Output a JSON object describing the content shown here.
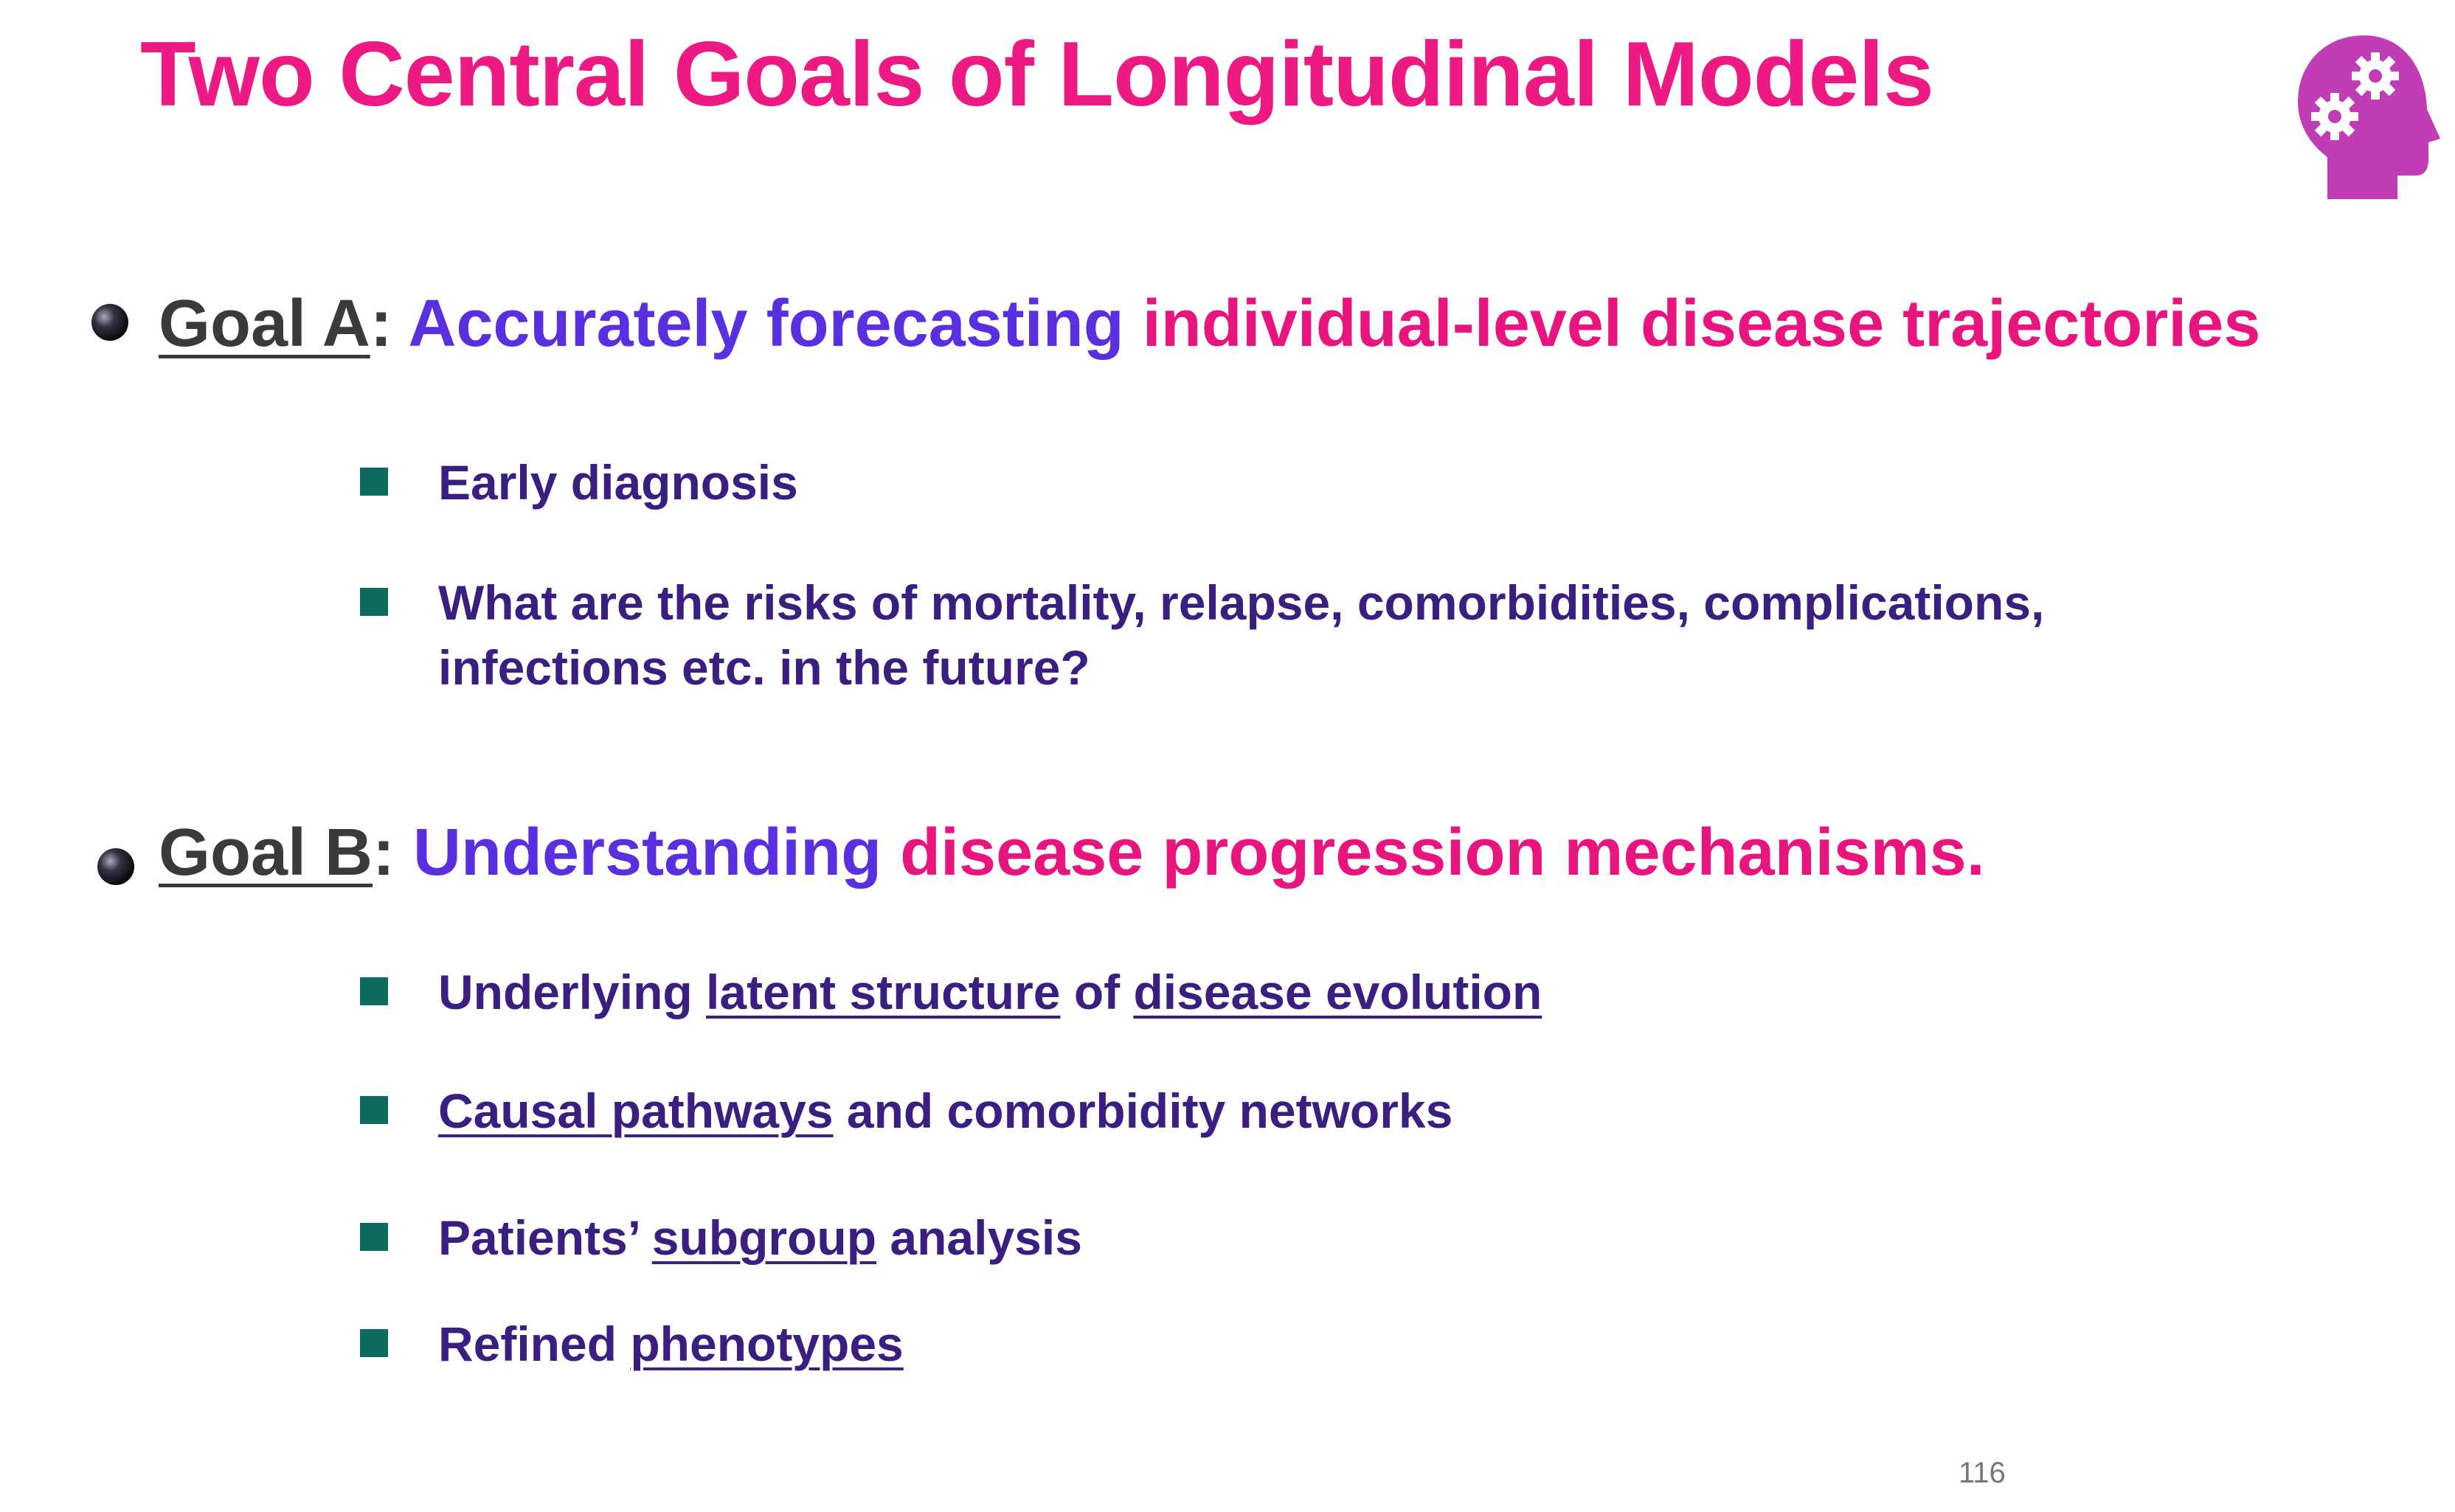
{
  "title": "Two Central Goals of Longitudinal Models",
  "goals": [
    {
      "label": "Goal A",
      "colon": ":",
      "lead": "Accurately forecasting",
      "focus": "individual-level disease trajectories",
      "items": [
        [
          {
            "text": "Early diagnosis"
          }
        ],
        [
          {
            "text": "What are the risks of mortality, relapse, comorbidities, complications, infections etc. in the future?"
          }
        ]
      ]
    },
    {
      "label": "Goal B",
      "colon": ":",
      "lead": "Understanding",
      "focus": "disease progression mechanisms.",
      "items": [
        [
          {
            "text": "Underlying "
          },
          {
            "text": "latent structure",
            "underline": true
          },
          {
            "text": " of "
          },
          {
            "text": "disease evolution",
            "underline": true
          }
        ],
        [
          {
            "text": "Causal pathways",
            "underline": true
          },
          {
            "text": " and comorbidity networks"
          }
        ],
        [
          {
            "text": "Patients’ "
          },
          {
            "text": "subgroup",
            "underline": true
          },
          {
            "text": " analysis"
          }
        ],
        [
          {
            "text": "Refined "
          },
          {
            "text": "phenotypes",
            "underline": true
          }
        ]
      ]
    }
  ],
  "page_number": "116"
}
